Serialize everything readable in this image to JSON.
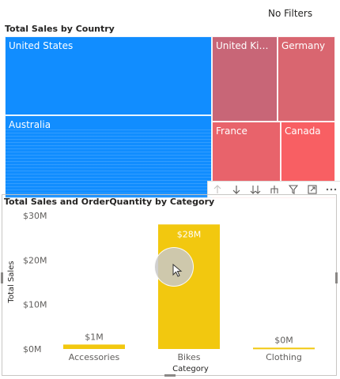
{
  "filters_label": "No Filters",
  "treemap": {
    "title": "Total Sales by Country",
    "tiles": [
      {
        "label": "United States",
        "color": "#118dff"
      },
      {
        "label": "Australia",
        "color": "#118dff"
      },
      {
        "label": "United Kingdom",
        "color": "#c86677"
      },
      {
        "label": "Germany",
        "color": "#d96670"
      },
      {
        "label": "France",
        "color": "#e8636b"
      },
      {
        "label": "Canada",
        "color": "#f85f63"
      }
    ],
    "toolbar_icons": [
      "arrow-up-icon",
      "arrow-down-icon",
      "double-arrow-down-icon",
      "expand-hierarchy-icon",
      "filter-icon",
      "focus-mode-icon",
      "more-options-icon"
    ]
  },
  "bar_chart": {
    "title": "Total Sales and OrderQuantity by Category",
    "color": "#f2c80f",
    "axis_color": "#605e5c"
  },
  "chart_data": {
    "type": "bar",
    "title": "Total Sales and OrderQuantity by Category",
    "categories": [
      "Accessories",
      "Bikes",
      "Clothing"
    ],
    "series": [
      {
        "values": [
          1,
          28,
          0.3
        ]
      }
    ],
    "data_labels": [
      "$1M",
      "$28M",
      "$0M"
    ],
    "xlabel": "Category",
    "ylabel": "Total Sales",
    "yticks": [
      "$0M",
      "$10M",
      "$20M",
      "$30M"
    ],
    "ylim": [
      0,
      30
    ],
    "grid": false
  }
}
